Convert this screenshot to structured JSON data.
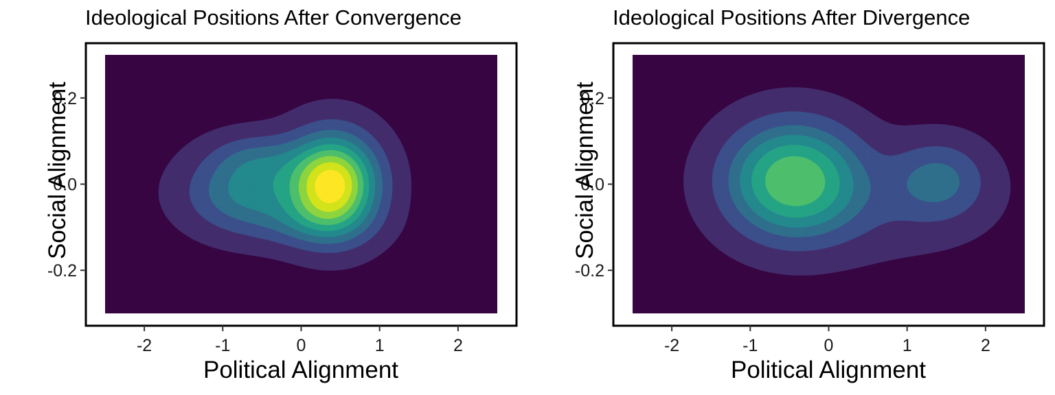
{
  "palette": [
    "#360542",
    "#432c6c",
    "#3b4f8b",
    "#2f6f8c",
    "#23898d",
    "#25a385",
    "#4cbe6c",
    "#8dd43e",
    "#d2e31b",
    "#fde725"
  ],
  "chart_data": [
    {
      "type": "density-contour",
      "title": "Ideological Positions After Convergence",
      "xlabel": "Political Alignment",
      "ylabel": "Social Alignment",
      "xlim": [
        -2.5,
        2.5
      ],
      "ylim": [
        -0.3,
        0.3
      ],
      "xticks": [
        -2,
        -1,
        0,
        1,
        2
      ],
      "xtick_labels": [
        "-2",
        "-1",
        "0",
        "1",
        "2"
      ],
      "yticks": [
        -0.2,
        0.0,
        0.2
      ],
      "ytick_labels": [
        "-0.2",
        "0.0",
        "0.2"
      ],
      "grid": false,
      "legend": "none",
      "density_peaks": [
        {
          "x": 0.4,
          "y": 0.0
        },
        {
          "x": -0.7,
          "y": -0.02
        }
      ],
      "components": [
        {
          "cx": 0.4,
          "cy": 0.0,
          "sx": 0.38,
          "sy": 0.075,
          "w": 1.0
        },
        {
          "cx": -0.7,
          "cy": -0.02,
          "sx": 0.5,
          "sy": 0.06,
          "w": 0.38
        },
        {
          "cx": -0.55,
          "cy": 0.06,
          "sx": 0.4,
          "sy": 0.04,
          "w": 0.18
        },
        {
          "cx": 0.1,
          "cy": -0.09,
          "sx": 0.5,
          "sy": 0.04,
          "w": 0.15
        }
      ],
      "levels": [
        0.03,
        0.13,
        0.24,
        0.35,
        0.46,
        0.57,
        0.68,
        0.79,
        0.9
      ]
    },
    {
      "type": "density-contour",
      "title": "Ideological Positions After Divergence",
      "xlabel": "Political Alignment",
      "ylabel": "Social Alignment",
      "xlim": [
        -2.5,
        2.5
      ],
      "ylim": [
        -0.3,
        0.3
      ],
      "xticks": [
        -2,
        -1,
        0,
        1,
        2
      ],
      "xtick_labels": [
        "-2",
        "-1",
        "0",
        "1",
        "2"
      ],
      "yticks": [
        -0.2,
        0.0,
        0.2
      ],
      "ytick_labels": [
        "-0.2",
        "0.0",
        "0.2"
      ],
      "grid": false,
      "legend": "none",
      "density_peaks": [
        {
          "x": -0.45,
          "y": 0.01
        },
        {
          "x": 1.4,
          "y": 0.01
        }
      ],
      "components": [
        {
          "cx": -0.45,
          "cy": 0.01,
          "sx": 0.55,
          "sy": 0.085,
          "w": 1.0
        },
        {
          "cx": 1.4,
          "cy": 0.01,
          "sx": 0.4,
          "sy": 0.06,
          "w": 0.36
        },
        {
          "cx": 0.6,
          "cy": -0.05,
          "sx": 0.9,
          "sy": 0.08,
          "w": 0.12
        }
      ],
      "levels": [
        0.04,
        0.17,
        0.32,
        0.46,
        0.62,
        0.8
      ]
    }
  ]
}
